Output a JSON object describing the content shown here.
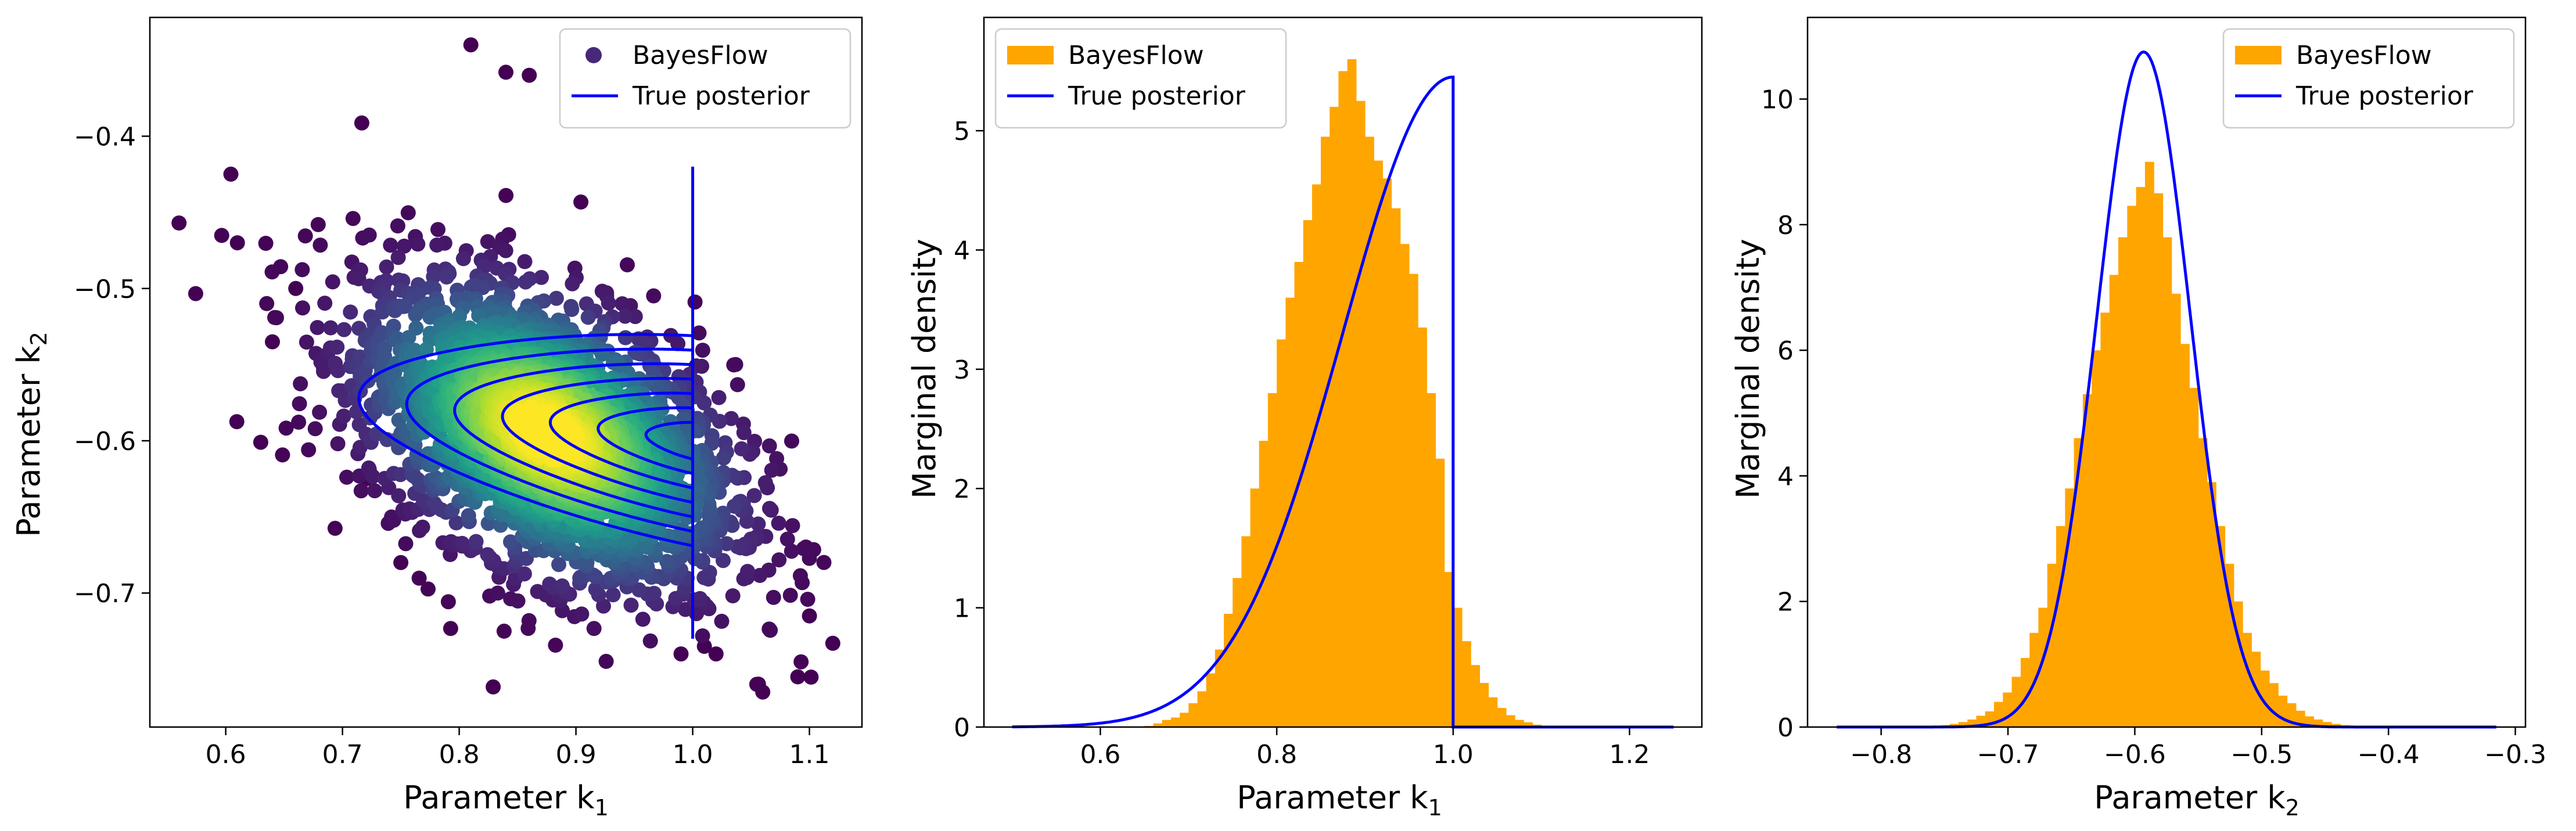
{
  "chart_data": [
    {
      "type": "scatter",
      "xlabel": "Parameter k",
      "xlabel_sub": "1",
      "ylabel": "Parameter k",
      "ylabel_sub": "2",
      "xlim": [
        0.535,
        1.145
      ],
      "ylim": [
        -0.788,
        -0.322
      ],
      "xticks": [
        0.6,
        0.7,
        0.8,
        0.9,
        1.0,
        1.1
      ],
      "xtick_labels": [
        "0.6",
        "0.7",
        "0.8",
        "0.9",
        "1.0",
        "1.1"
      ],
      "yticks": [
        -0.4,
        -0.5,
        -0.6,
        -0.7
      ],
      "ytick_labels": [
        "−0.4",
        "−0.5",
        "−0.6",
        "−0.7"
      ],
      "legend_position": "top-right",
      "legend": [
        {
          "label": "BayesFlow",
          "marker": "dot",
          "color": "#482878"
        },
        {
          "label": "True posterior",
          "marker": "line",
          "color": "#0000ff"
        }
      ],
      "series": [
        {
          "name": "BayesFlow",
          "kind": "density-scatter",
          "colormap": "viridis",
          "center": [
            0.875,
            -0.595
          ],
          "spread": [
            0.08,
            0.05
          ],
          "correlation": -0.45,
          "x_range": [
            0.56,
            1.12
          ],
          "y_range": [
            -0.765,
            -0.34
          ],
          "outliers": [
            [
              0.56,
              -0.457
            ],
            [
              0.61,
              -0.47
            ],
            [
              0.63,
              -0.601
            ],
            [
              0.64,
              -0.535
            ],
            [
              0.66,
              -0.5
            ],
            [
              0.81,
              -0.34
            ],
            [
              0.84,
              -0.358
            ],
            [
              0.86,
              -0.36
            ],
            [
              0.99,
              -0.74
            ],
            [
              1.01,
              -0.735
            ],
            [
              1.02,
              -0.74
            ],
            [
              1.06,
              -0.765
            ],
            [
              1.09,
              -0.755
            ],
            [
              1.12,
              -0.733
            ],
            [
              1.1,
              -0.715
            ],
            [
              0.75,
              -0.68
            ],
            [
              0.72,
              -0.625
            ]
          ]
        },
        {
          "name": "True posterior",
          "kind": "contour",
          "color": "#0000ff",
          "truncation_k1": 1.0,
          "truncation_line": [
            -0.73,
            -0.42
          ],
          "mode": [
            1.0,
            -0.6
          ],
          "levels": 7
        }
      ]
    },
    {
      "type": "histogram",
      "xlabel": "Parameter k",
      "xlabel_sub": "1",
      "ylabel": "Marginal density",
      "xlim": [
        0.468,
        1.282
      ],
      "ylim": [
        0,
        5.95
      ],
      "xticks": [
        0.6,
        0.8,
        1.0,
        1.2
      ],
      "xtick_labels": [
        "0.6",
        "0.8",
        "1.0",
        "1.2"
      ],
      "yticks": [
        0,
        1,
        2,
        3,
        4,
        5
      ],
      "ytick_labels": [
        "0",
        "1",
        "2",
        "3",
        "4",
        "5"
      ],
      "legend_position": "top-left",
      "legend": [
        {
          "label": "BayesFlow",
          "marker": "patch",
          "color": "#ffa500"
        },
        {
          "label": "True posterior",
          "marker": "line",
          "color": "#0000ff"
        }
      ],
      "bins": {
        "start": 0.65,
        "width": 0.01,
        "values": [
          0.01,
          0.03,
          0.06,
          0.08,
          0.12,
          0.2,
          0.3,
          0.45,
          0.65,
          0.95,
          1.25,
          1.6,
          2.0,
          2.4,
          2.8,
          3.25,
          3.6,
          3.9,
          4.25,
          4.55,
          4.95,
          5.2,
          5.5,
          5.6,
          5.25,
          4.95,
          4.75,
          4.6,
          4.35,
          4.05,
          3.8,
          3.35,
          2.8,
          2.25,
          1.3,
          1.0,
          0.72,
          0.52,
          0.37,
          0.25,
          0.16,
          0.1,
          0.06,
          0.04,
          0.02
        ]
      },
      "curve": {
        "name": "True posterior",
        "x_start": 0.5,
        "x_end": 1.25,
        "peak_x": 1.0,
        "peak_y": 5.45,
        "sigma": 0.125,
        "truncation": 1.0
      }
    },
    {
      "type": "histogram",
      "xlabel": "Parameter k",
      "xlabel_sub": "2",
      "ylabel": "Marginal density",
      "xlim": [
        -0.858,
        -0.292
      ],
      "ylim": [
        0,
        11.3
      ],
      "xticks": [
        -0.8,
        -0.7,
        -0.6,
        -0.5,
        -0.4,
        -0.3
      ],
      "xtick_labels": [
        "−0.8",
        "−0.7",
        "−0.6",
        "−0.5",
        "−0.4",
        "−0.3"
      ],
      "yticks": [
        0,
        2,
        4,
        6,
        8,
        10
      ],
      "ytick_labels": [
        "0",
        "2",
        "4",
        "6",
        "8",
        "10"
      ],
      "legend_position": "top-right",
      "legend": [
        {
          "label": "BayesFlow",
          "marker": "patch",
          "color": "#ffa500"
        },
        {
          "label": "True posterior",
          "marker": "line",
          "color": "#0000ff"
        }
      ],
      "bins": {
        "start": -0.76,
        "width": 0.007,
        "values": [
          0.02,
          0.03,
          0.05,
          0.08,
          0.12,
          0.18,
          0.25,
          0.4,
          0.55,
          0.8,
          1.1,
          1.5,
          1.9,
          2.6,
          3.2,
          3.8,
          4.6,
          5.3,
          6.0,
          6.6,
          7.2,
          7.8,
          8.3,
          8.6,
          9.0,
          8.5,
          7.8,
          6.9,
          6.1,
          5.4,
          4.6,
          3.9,
          3.2,
          2.6,
          2.0,
          1.5,
          1.2,
          0.9,
          0.7,
          0.5,
          0.38,
          0.26,
          0.17,
          0.12,
          0.08,
          0.05,
          0.03,
          0.02
        ]
      },
      "curve": {
        "name": "True posterior",
        "x_start": -0.835,
        "x_end": -0.315,
        "mean": -0.593,
        "sigma": 0.037,
        "peak_y": 10.75
      }
    }
  ]
}
